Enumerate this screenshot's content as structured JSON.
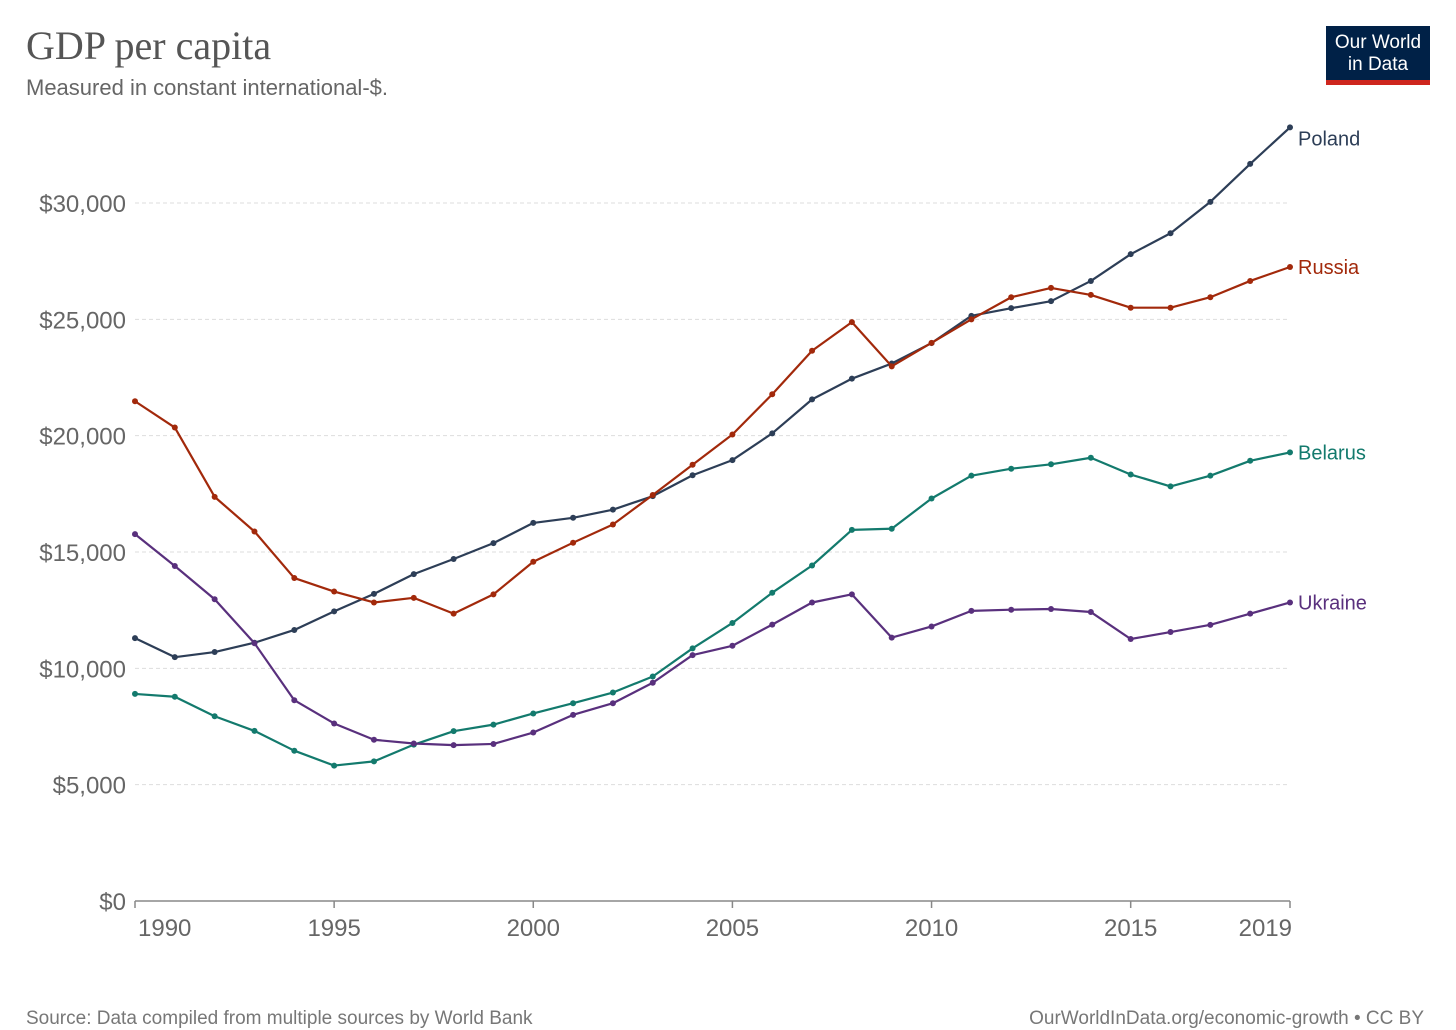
{
  "header": {
    "title": "GDP per capita",
    "subtitle": "Measured in constant international-$."
  },
  "logo": {
    "line1": "Our World",
    "line2": "in Data"
  },
  "footer": {
    "source": "Source: Data compiled from multiple sources by World Bank",
    "credit": "OurWorldInData.org/economic-growth • CC BY"
  },
  "colors": {
    "background": "#ffffff",
    "grid": "#dddddd",
    "axis": "#888888",
    "tick_text": "#666666",
    "logo_bg": "#002147",
    "logo_accent": "#ce261e"
  },
  "chart_data": {
    "type": "line",
    "title": "GDP per capita",
    "subtitle": "Measured in constant international-$.",
    "xlim": [
      1990,
      2019
    ],
    "ylim": [
      0,
      33000
    ],
    "x": [
      1990,
      1991,
      1992,
      1993,
      1994,
      1995,
      1996,
      1997,
      1998,
      1999,
      2000,
      2001,
      2002,
      2003,
      2004,
      2005,
      2006,
      2007,
      2008,
      2009,
      2010,
      2011,
      2012,
      2013,
      2014,
      2015,
      2016,
      2017,
      2018,
      2019
    ],
    "x_ticks": [
      1990,
      1995,
      2000,
      2005,
      2010,
      2015,
      2019
    ],
    "x_tick_labels": [
      "1990",
      "1995",
      "2000",
      "2005",
      "2010",
      "2015",
      "2019"
    ],
    "y_ticks": [
      0,
      5000,
      10000,
      15000,
      20000,
      25000,
      30000
    ],
    "y_tick_labels": [
      "$0",
      "$5,000",
      "$10,000",
      "$15,000",
      "$20,000",
      "$25,000",
      "$30,000"
    ],
    "grid": true,
    "legend": "inline labels at line ends",
    "series": [
      {
        "name": "Poland",
        "color": "#2d3e57",
        "values": [
          11300,
          10480,
          10700,
          11100,
          11650,
          12450,
          13200,
          14050,
          14700,
          15380,
          16250,
          16470,
          16820,
          17400,
          18300,
          18950,
          20100,
          21560,
          22450,
          23100,
          23980,
          25150,
          25480,
          25780,
          26650,
          27800,
          28700,
          30050,
          31680,
          33250
        ]
      },
      {
        "name": "Russia",
        "color": "#a2290b",
        "values": [
          21480,
          20350,
          17370,
          15880,
          13880,
          13300,
          12830,
          13030,
          12350,
          13180,
          14580,
          15400,
          16180,
          17450,
          18750,
          20050,
          21780,
          23650,
          24880,
          22980,
          23990,
          25000,
          25950,
          26350,
          26050,
          25500,
          25500,
          25950,
          26650,
          27250
        ]
      },
      {
        "name": "Belarus",
        "color": "#137a6d",
        "values": [
          8900,
          8780,
          7940,
          7310,
          6460,
          5820,
          6000,
          6720,
          7300,
          7580,
          8060,
          8500,
          8960,
          9650,
          10860,
          11950,
          13250,
          14420,
          15950,
          16000,
          17300,
          18280,
          18580,
          18770,
          19050,
          18330,
          17820,
          18280,
          18920,
          19280
        ]
      },
      {
        "name": "Ukraine",
        "color": "#59307d",
        "values": [
          15770,
          14400,
          12970,
          11080,
          8630,
          7630,
          6930,
          6770,
          6700,
          6750,
          7240,
          8000,
          8500,
          9380,
          10570,
          10970,
          11880,
          12830,
          13180,
          11320,
          11800,
          12470,
          12520,
          12550,
          12420,
          11260,
          11560,
          11870,
          12350,
          12830
        ]
      }
    ]
  }
}
